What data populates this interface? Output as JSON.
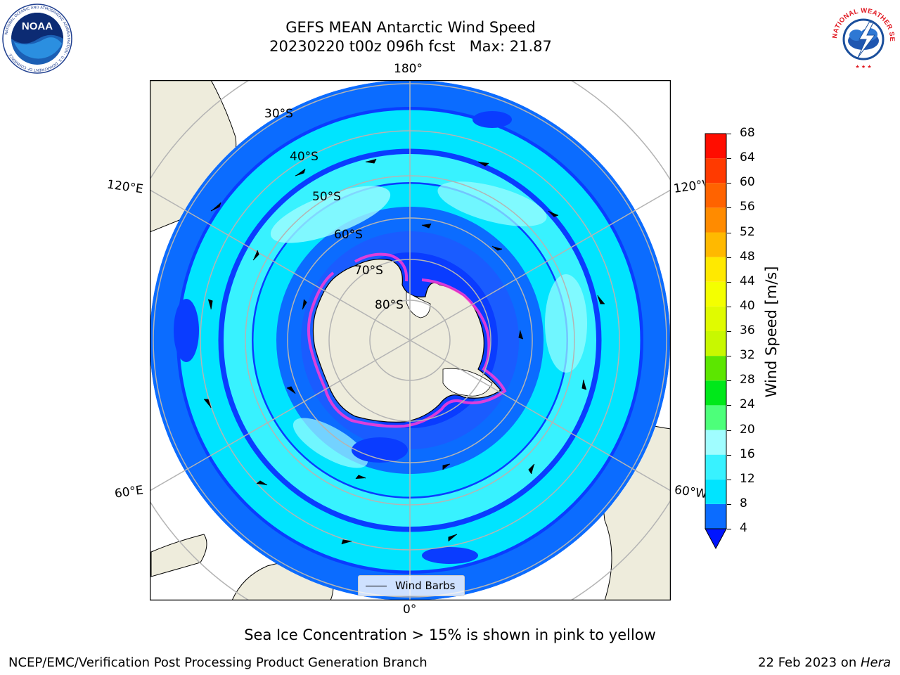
{
  "title": {
    "line1": "GEFS MEAN Antarctic Wind Speed",
    "line2": "20230220 t00z 096h fcst   Max: 21.87"
  },
  "map": {
    "projection": "south-polar-stereographic",
    "longitude_labels": {
      "top": "180°",
      "bottom": "0°",
      "upper_left": "120°E",
      "upper_right": "120°W",
      "lower_left": "60°E",
      "lower_right": "60°W"
    },
    "latitude_labels": [
      "30°S",
      "40°S",
      "50°S",
      "60°S",
      "70°S",
      "80°S"
    ],
    "ocean_color": "#0a3cff",
    "land_color": "#eeecdc"
  },
  "legend": {
    "label": "Wind Barbs"
  },
  "colorbar": {
    "label": "Wind Speed [m/s]",
    "ticks": [
      "4",
      "8",
      "12",
      "16",
      "20",
      "24",
      "28",
      "32",
      "36",
      "40",
      "44",
      "48",
      "52",
      "56",
      "60",
      "64",
      "68"
    ],
    "colors": [
      "#0b6cff",
      "#00e4ff",
      "#38f2ff",
      "#a0fdff",
      "#4dff7a",
      "#00e81a",
      "#5ce600",
      "#c8f800",
      "#e0fb00",
      "#f4ff00",
      "#ffe900",
      "#ffb900",
      "#ff8b00",
      "#ff6300",
      "#ff3a00",
      "#ff0d00"
    ],
    "under_color": "#0015ff"
  },
  "caption": "Sea Ice Concentration > 15% is shown in pink to yellow",
  "footer": {
    "left": "NCEP/EMC/Verification Post Processing Product Generation Branch",
    "right_prefix": "22 Feb 2023 on ",
    "right_machine": "Hera"
  },
  "logos": {
    "noaa": "NOAA",
    "nws": "NATIONAL WEATHER SERVICE"
  }
}
